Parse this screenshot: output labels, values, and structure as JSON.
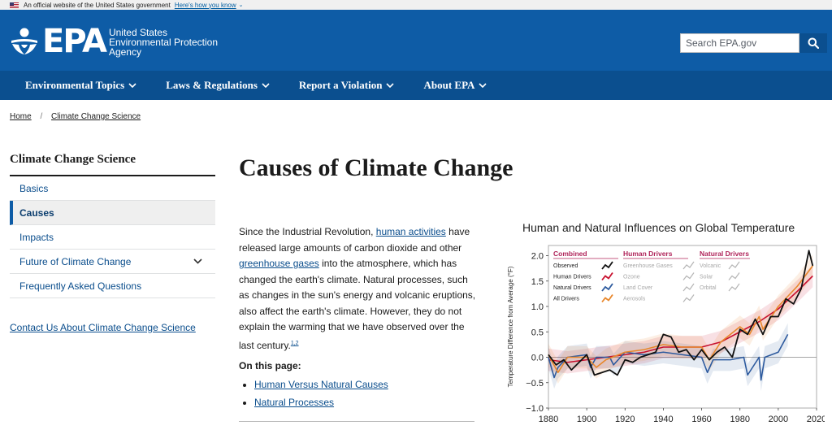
{
  "gov_banner": {
    "text": "An official website of the United States government",
    "link": "Here's how you know"
  },
  "header": {
    "logo_text": "EPA",
    "agency_lines": [
      "United States",
      "Environmental Protection",
      "Agency"
    ],
    "search_placeholder": "Search EPA.gov"
  },
  "nav": {
    "items": [
      "Environmental Topics",
      "Laws & Regulations",
      "Report a Violation",
      "About EPA"
    ]
  },
  "breadcrumb": {
    "home": "Home",
    "current": "Climate Change Science"
  },
  "sidebar": {
    "title": "Climate Change Science",
    "items": [
      "Basics",
      "Causes",
      "Impacts",
      "Future of Climate Change",
      "Frequently Asked Questions"
    ],
    "active_index": 1,
    "contact": "Contact Us About Climate Change Science"
  },
  "main": {
    "title": "Causes of Climate Change",
    "p_1": "Since the Industrial Revolution, ",
    "link_1": "human activities",
    "p_2": " have released large amounts of carbon dioxide and other ",
    "link_2": "greenhouse gases",
    "p_3": " into the atmosphere, which has changed the earth's climate. Natural processes, such as changes in the sun's energy and volcanic eruptions, also affect the earth's climate. However, they do not explain the warming that we have observed over the last century.",
    "footnote": "1,2",
    "on_this_page": "On this page:",
    "page_links": [
      "Human Versus Natural Causes",
      "Natural Processes"
    ]
  },
  "chart_data": {
    "type": "line",
    "title": "Human and Natural Influences on Global Temperature",
    "ylabel": "Temperature Difference from Average (°F)",
    "xlabel": "",
    "xlim": [
      1880,
      2020
    ],
    "ylim": [
      -1.0,
      2.2
    ],
    "x_ticks": [
      1880,
      1900,
      1920,
      1940,
      1960,
      1980,
      2000,
      2020
    ],
    "y_ticks": [
      "2.0",
      "1.5",
      "1.0",
      "0.5",
      "0.0",
      "−0.5",
      "−1.0"
    ],
    "legend_groups": [
      {
        "title": "Combined",
        "color": "#b0245a",
        "entries": [
          "Observed",
          "Human Drivers",
          "Natural Drivers",
          "All Drivers"
        ]
      },
      {
        "title": "Human Drivers",
        "color": "#b0245a",
        "entries": [
          "Greenhouse Gases",
          "Ozone",
          "Land Cover",
          "Aerosols"
        ]
      },
      {
        "title": "Natural Drivers",
        "color": "#b0245a",
        "entries": [
          "Volcanic",
          "Solar",
          "Orbital"
        ]
      }
    ],
    "series": [
      {
        "name": "Observed",
        "color": "#111111",
        "x": [
          1880,
          1884,
          1888,
          1892,
          1896,
          1900,
          1904,
          1908,
          1912,
          1916,
          1920,
          1924,
          1928,
          1932,
          1936,
          1940,
          1944,
          1948,
          1952,
          1956,
          1960,
          1964,
          1968,
          1972,
          1976,
          1980,
          1984,
          1988,
          1992,
          1996,
          2000,
          2004,
          2008,
          2012,
          2016,
          2018
        ],
        "y": [
          0.05,
          -0.15,
          -0.05,
          -0.25,
          -0.1,
          0.05,
          -0.35,
          -0.3,
          -0.25,
          -0.35,
          -0.05,
          -0.1,
          0.0,
          0.05,
          0.1,
          0.45,
          0.4,
          0.1,
          0.15,
          -0.05,
          0.15,
          -0.05,
          0.1,
          0.2,
          0.0,
          0.55,
          0.45,
          0.75,
          0.45,
          0.8,
          0.8,
          1.15,
          1.05,
          1.35,
          2.1,
          1.8
        ]
      },
      {
        "name": "Human Drivers",
        "color": "#c8102e",
        "x": [
          1880,
          1890,
          1900,
          1910,
          1920,
          1930,
          1940,
          1950,
          1960,
          1970,
          1980,
          1990,
          2000,
          2010,
          2018
        ],
        "y": [
          -0.05,
          -0.1,
          -0.05,
          0.0,
          0.05,
          0.1,
          0.2,
          0.2,
          0.2,
          0.3,
          0.5,
          0.7,
          0.95,
          1.3,
          1.6
        ]
      },
      {
        "name": "Natural Drivers",
        "color": "#2d5a9e",
        "x": [
          1880,
          1883,
          1885,
          1890,
          1900,
          1902,
          1905,
          1912,
          1914,
          1920,
          1930,
          1940,
          1950,
          1960,
          1963,
          1966,
          1975,
          1982,
          1984,
          1990,
          1991,
          1993,
          2000,
          2005
        ],
        "y": [
          0.0,
          -0.4,
          -0.2,
          0.0,
          0.05,
          -0.2,
          0.0,
          0.0,
          -0.15,
          0.1,
          0.05,
          0.1,
          0.05,
          0.0,
          -0.3,
          -0.05,
          -0.05,
          0.0,
          -0.35,
          0.0,
          -0.45,
          0.0,
          0.1,
          0.45
        ]
      },
      {
        "name": "All Drivers",
        "color": "#e8872b",
        "x": [
          1880,
          1885,
          1890,
          1900,
          1905,
          1910,
          1920,
          1930,
          1940,
          1950,
          1960,
          1964,
          1970,
          1980,
          1985,
          1990,
          1992,
          2000,
          2010,
          2018
        ],
        "y": [
          0.05,
          -0.3,
          0.0,
          0.0,
          -0.2,
          -0.05,
          0.1,
          0.15,
          0.25,
          0.2,
          0.2,
          -0.05,
          0.3,
          0.6,
          0.45,
          0.8,
          0.55,
          1.0,
          1.4,
          1.8
        ]
      }
    ]
  }
}
